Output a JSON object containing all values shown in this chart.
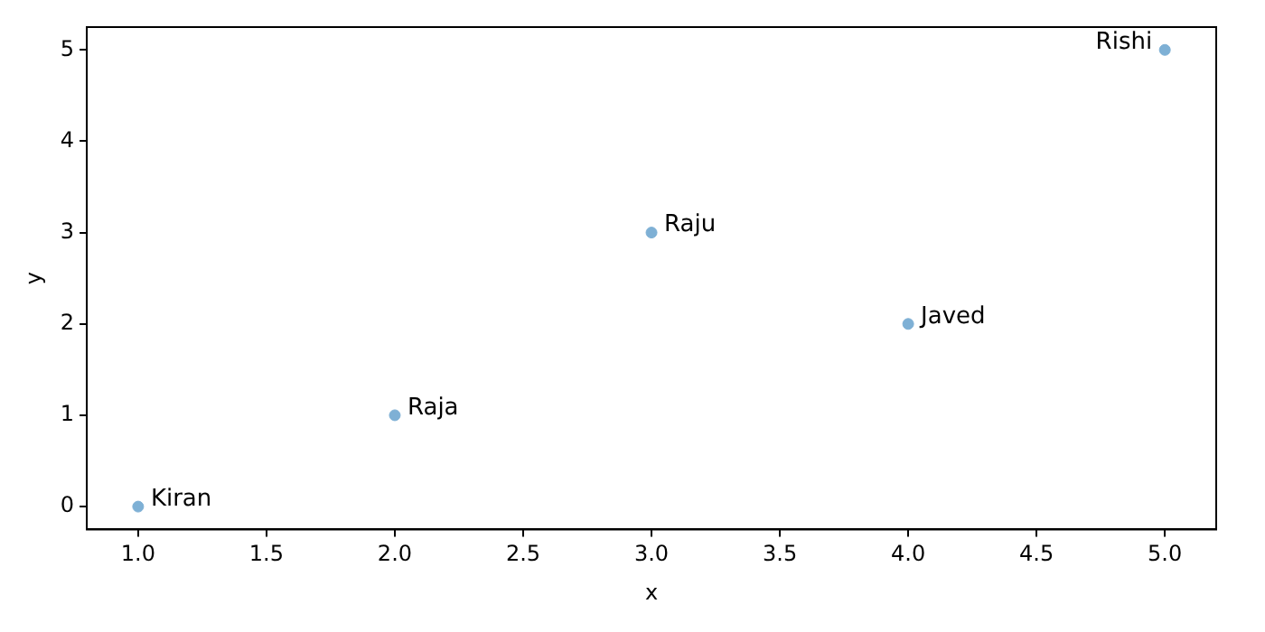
{
  "chart_data": {
    "type": "scatter",
    "xlabel": "x",
    "ylabel": "y",
    "series": [
      {
        "color": "#7eb0d5",
        "x": [
          1,
          2,
          3,
          4,
          5
        ],
        "values": [
          0,
          1,
          3,
          2,
          5
        ]
      }
    ],
    "annotations": [
      {
        "text": "Kiran",
        "x": 1,
        "y": 0
      },
      {
        "text": "Raja",
        "x": 2,
        "y": 1
      },
      {
        "text": "Raju",
        "x": 3,
        "y": 3
      },
      {
        "text": "Javed",
        "x": 4,
        "y": 2
      },
      {
        "text": "Rishi",
        "x": 5,
        "y": 5
      }
    ],
    "xlim": [
      0.8,
      5.2
    ],
    "xticks": [
      {
        "value": 1,
        "label": "1.0"
      },
      {
        "value": 1.5,
        "label": "1.5"
      },
      {
        "value": 2,
        "label": "2.0"
      },
      {
        "value": 2.5,
        "label": "2.5"
      },
      {
        "value": 3,
        "label": "3.0"
      },
      {
        "value": 3.5,
        "label": "3.5"
      },
      {
        "value": 4,
        "label": "4.0"
      },
      {
        "value": 4.5,
        "label": "4.5"
      },
      {
        "value": 5,
        "label": "5.0"
      }
    ],
    "ylim": [
      -0.25,
      5.25
    ],
    "yticks": [
      0,
      1,
      2,
      3,
      4,
      5
    ],
    "grid": false,
    "legend": false,
    "marker": "circle"
  }
}
